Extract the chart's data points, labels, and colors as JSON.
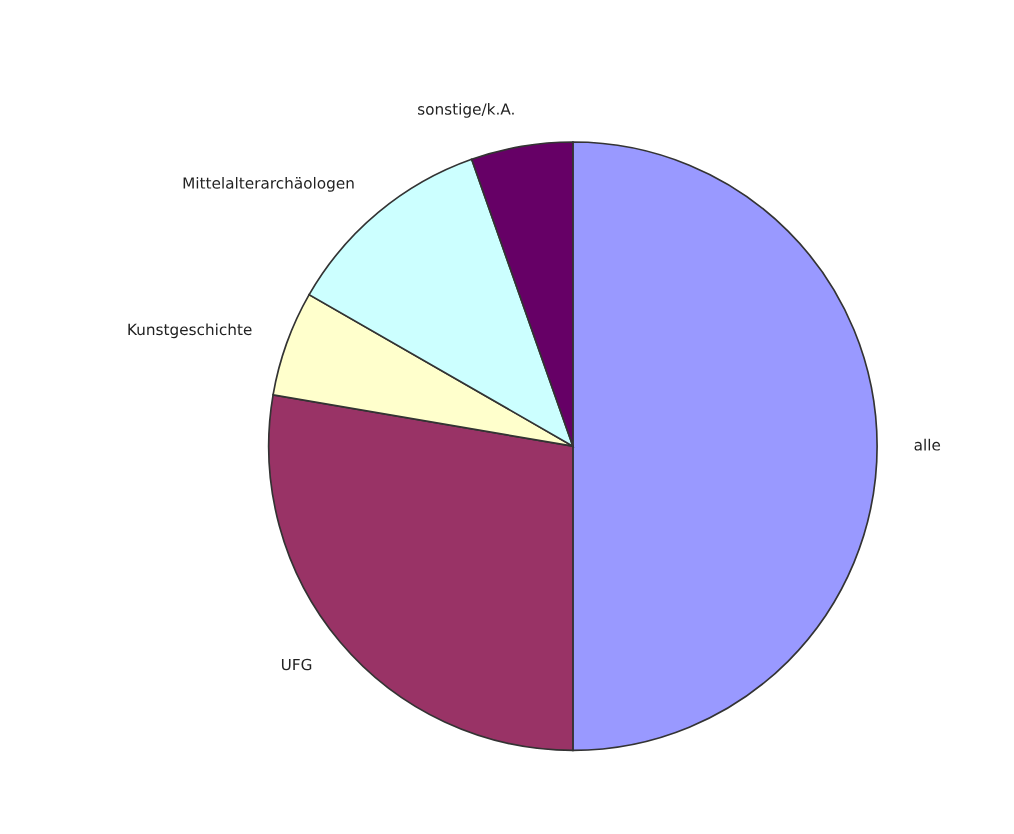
{
  "chart_data": {
    "type": "pie",
    "categories": [
      "alle",
      "UFG",
      "Kunstgeschichte",
      "Mittelalterarchäologen",
      "sonstige/k.A."
    ],
    "values": [
      50,
      27.7,
      5.6,
      11.3,
      5.4
    ],
    "colors": [
      "#9999ff",
      "#993366",
      "#ffffcc",
      "#ccffff",
      "#660066"
    ]
  }
}
